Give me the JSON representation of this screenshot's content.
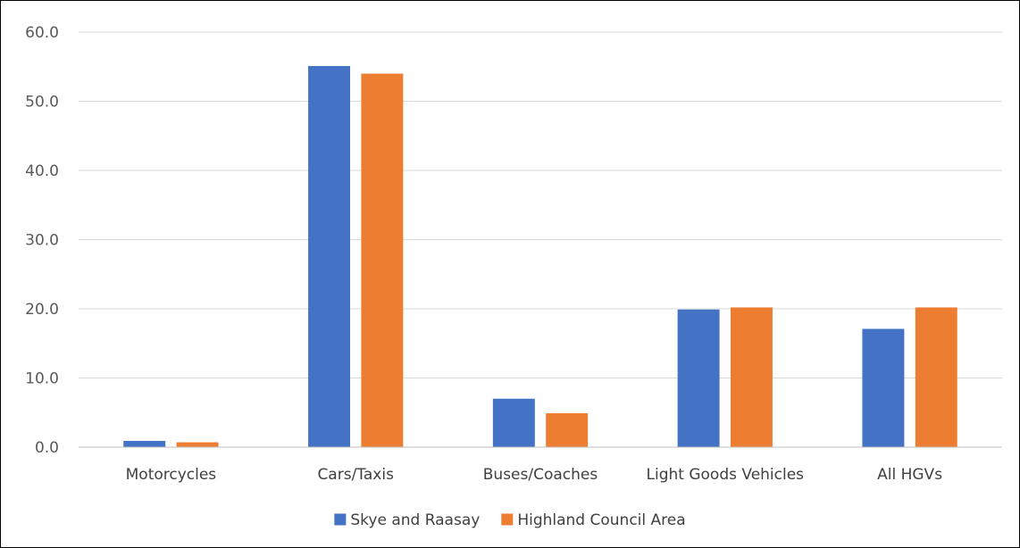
{
  "chart_data": {
    "type": "bar",
    "categories": [
      "Motorcycles",
      "Cars/Taxis",
      "Buses/Coaches",
      "Light Goods Vehicles",
      "All HGVs"
    ],
    "series": [
      {
        "name": "Skye and Raasay",
        "values": [
          0.9,
          55.1,
          7.0,
          19.9,
          17.1
        ],
        "color": "#4472C4"
      },
      {
        "name": "Highland Council Area",
        "values": [
          0.7,
          54.0,
          4.9,
          20.2,
          20.2
        ],
        "color": "#ED7D31"
      }
    ],
    "yticks": [
      "0.0",
      "10.0",
      "20.0",
      "30.0",
      "40.0",
      "50.0",
      "60.0"
    ],
    "ylim": [
      0,
      60
    ],
    "grid": true,
    "legend": "bottom",
    "gridline_color": "#D9D9D9",
    "axis_color": "#BFBFBF"
  }
}
